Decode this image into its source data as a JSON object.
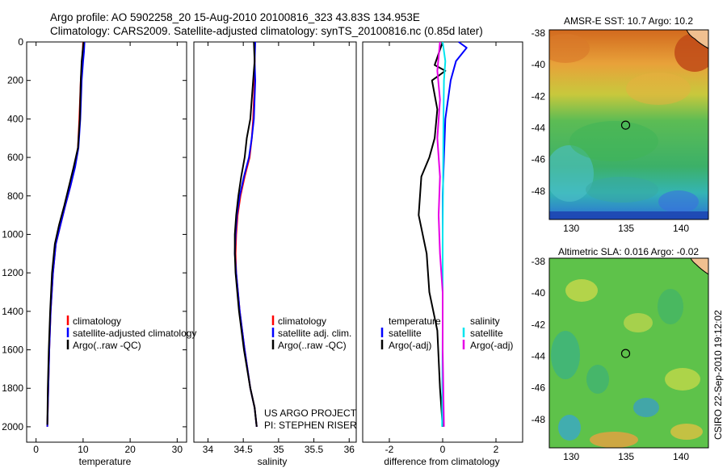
{
  "figure": {
    "title_line1": "Argo profile: AO 5902258_20 15-Aug-2010 20100816_323 43.83S 134.953E",
    "title_line2": "Climatology: CARS2009. Satellite-adjusted climatology: synTS_20100816.nc (0.85d later)",
    "side_label": "CSIRO 22-Sep-2010 19:12:02",
    "project_line1": "US ARGO PROJECT",
    "project_line2": "PI: STEPHEN RISER"
  },
  "colors": {
    "climatology": "#ff0000",
    "satellite": "#0000ff",
    "argo": "#000000",
    "sat_salinity": "#00e5ee",
    "argo_salinity": "#e600e6"
  },
  "chart_data": [
    {
      "type": "line",
      "name": "temperature-profile",
      "xlabel": "temperature",
      "ylabel": "",
      "xlim": [
        -2,
        32
      ],
      "ylim": [
        2080,
        0
      ],
      "xticks": [
        0,
        10,
        20,
        30
      ],
      "yticks": [
        0,
        200,
        400,
        600,
        800,
        1000,
        1200,
        1400,
        1600,
        1800,
        2000
      ],
      "legend": [
        "climatology",
        "satellite-adjusted climatology",
        "Argo(..raw -QC)"
      ],
      "series": [
        {
          "name": "climatology",
          "color": "#ff0000",
          "x": [
            10.0,
            9.9,
            9.8,
            9.5,
            9.2,
            8.9,
            8.2,
            7.3,
            6.2,
            5.2,
            4.2,
            3.6,
            3.1,
            2.8,
            2.6,
            2.4
          ],
          "y": [
            0,
            50,
            100,
            200,
            400,
            550,
            650,
            750,
            850,
            950,
            1050,
            1200,
            1400,
            1600,
            1800,
            2000
          ]
        },
        {
          "name": "satellite-adjusted",
          "color": "#0000ff",
          "x": [
            10.3,
            10.2,
            10.0,
            9.7,
            9.4,
            9.0,
            8.3,
            7.3,
            6.2,
            5.2,
            4.2,
            3.6,
            3.1,
            2.8,
            2.6,
            2.4
          ],
          "y": [
            0,
            50,
            100,
            200,
            400,
            550,
            650,
            750,
            850,
            950,
            1050,
            1200,
            1400,
            1600,
            1800,
            2000
          ]
        },
        {
          "name": "argo",
          "color": "#000000",
          "x": [
            10.1,
            9.9,
            9.7,
            9.5,
            9.3,
            8.9,
            8.0,
            7.0,
            6.0,
            4.9,
            4.0,
            3.4,
            3.0,
            2.7,
            2.5,
            2.4
          ],
          "y": [
            0,
            50,
            100,
            200,
            400,
            550,
            650,
            750,
            850,
            950,
            1050,
            1200,
            1400,
            1600,
            1800,
            1990
          ]
        }
      ]
    },
    {
      "type": "line",
      "name": "salinity-profile",
      "xlabel": "salinity",
      "ylabel": "",
      "xlim": [
        33.8,
        36.1
      ],
      "ylim": [
        2080,
        0
      ],
      "xticks": [
        34,
        34.5,
        35,
        35.5,
        36
      ],
      "yticks": [],
      "legend": [
        "climatology",
        "satellite adj. clim.",
        "Argo(..raw -QC)"
      ],
      "series": [
        {
          "name": "climatology",
          "color": "#ff0000",
          "x": [
            34.66,
            34.66,
            34.66,
            34.64,
            34.62,
            34.59,
            34.52,
            34.46,
            34.42,
            34.4,
            34.39,
            34.4,
            34.45,
            34.52,
            34.6,
            34.66,
            34.69
          ],
          "y": [
            0,
            100,
            200,
            400,
            500,
            600,
            700,
            800,
            900,
            1000,
            1100,
            1200,
            1400,
            1600,
            1800,
            1900,
            2000
          ]
        },
        {
          "name": "satellite-adjusted",
          "color": "#0000ff",
          "x": [
            34.67,
            34.66,
            34.67,
            34.65,
            34.62,
            34.58,
            34.51,
            34.45,
            34.41,
            34.39,
            34.38,
            34.4,
            34.45,
            34.52,
            34.6,
            34.66,
            34.69
          ],
          "y": [
            0,
            100,
            200,
            400,
            500,
            600,
            700,
            800,
            900,
            1000,
            1100,
            1200,
            1400,
            1600,
            1800,
            1900,
            2000
          ]
        },
        {
          "name": "argo",
          "color": "#000000",
          "x": [
            34.65,
            34.66,
            34.64,
            34.6,
            34.55,
            34.52,
            34.47,
            34.43,
            34.4,
            34.38,
            34.38,
            34.39,
            34.44,
            34.51,
            34.6,
            34.66,
            34.69
          ],
          "y": [
            0,
            100,
            200,
            400,
            500,
            600,
            700,
            800,
            900,
            1000,
            1100,
            1200,
            1400,
            1600,
            1800,
            1900,
            2000
          ]
        }
      ]
    },
    {
      "type": "line",
      "name": "difference-profile",
      "xlabel": "difference from climatology",
      "ylabel": "",
      "xlim": [
        -3,
        3
      ],
      "ylim": [
        2080,
        0
      ],
      "xticks": [
        -2,
        0,
        2
      ],
      "yticks": [],
      "legend_temperature_title": "temperature",
      "legend_salinity_title": "salinity",
      "legend_temperature": [
        "satellite",
        "Argo(-adj)"
      ],
      "legend_salinity": [
        "satellite",
        "Argo(-adj)"
      ],
      "series": [
        {
          "name": "temperature-satellite",
          "color": "#0000ff",
          "x": [
            0.6,
            0.9,
            0.5,
            0.3,
            0.1,
            0.05,
            0.0,
            0.0,
            0.0,
            0.0
          ],
          "y": [
            0,
            30,
            100,
            200,
            400,
            600,
            800,
            1200,
            1600,
            2000
          ]
        },
        {
          "name": "temperature-argo",
          "color": "#000000",
          "x": [
            0.0,
            -0.3,
            0.1,
            -0.4,
            -0.2,
            -0.3,
            -0.5,
            -0.8,
            -0.9,
            -0.6,
            -0.5,
            -0.2,
            -0.1,
            0.0
          ],
          "y": [
            0,
            120,
            150,
            200,
            350,
            500,
            600,
            700,
            900,
            1100,
            1300,
            1500,
            1800,
            2000
          ]
        },
        {
          "name": "salinity-satellite",
          "color": "#00e5ee",
          "x": [
            0.0,
            0.1,
            0.05,
            0.03,
            0.02,
            0.0,
            0.0,
            -0.02
          ],
          "y": [
            0,
            100,
            200,
            400,
            600,
            1000,
            1500,
            2000
          ]
        },
        {
          "name": "salinity-argo",
          "color": "#e600e6",
          "x": [
            -0.1,
            -0.2,
            -0.1,
            -0.2,
            -0.1,
            -0.15,
            -0.1,
            0.0,
            0.0,
            0.05
          ],
          "y": [
            0,
            150,
            300,
            500,
            700,
            900,
            1100,
            1300,
            1600,
            2000
          ]
        }
      ]
    },
    {
      "type": "heatmap",
      "name": "sst-map",
      "title": "AMSR-E SST: 10.7 Argo: 10.2",
      "xlim": [
        128,
        142.5
      ],
      "ylim": [
        -49.8,
        -37.8
      ],
      "xticks": [
        130,
        135,
        140
      ],
      "yticks": [
        -38,
        -40,
        -42,
        -44,
        -46,
        -48
      ],
      "marker": {
        "lon": 134.953,
        "lat": -43.83
      }
    },
    {
      "type": "heatmap",
      "name": "sla-map",
      "title": "Altimetric SLA: 0.016 Argo: -0.02",
      "xlim": [
        128,
        142.5
      ],
      "ylim": [
        -49.8,
        -37.8
      ],
      "xticks": [
        130,
        135,
        140
      ],
      "yticks": [
        -38,
        -40,
        -42,
        -44,
        -46,
        -48
      ],
      "marker": {
        "lon": 134.953,
        "lat": -43.83
      }
    }
  ]
}
